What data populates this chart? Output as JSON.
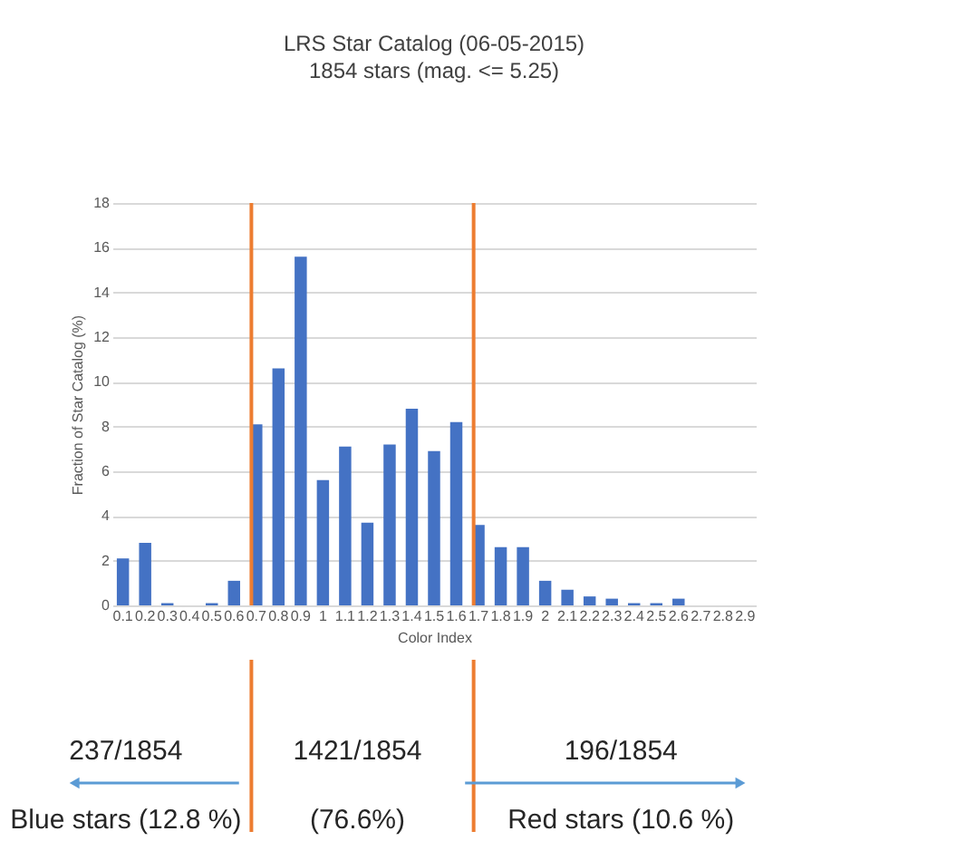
{
  "chart_data": {
    "type": "bar",
    "title": "LRS Star Catalog (06-05-2015)",
    "subtitle": "1854 stars (mag. <= 5.25)",
    "xlabel": "Color Index",
    "ylabel": "Fraction of Star Catalog (%)",
    "categories": [
      "0.1",
      "0.2",
      "0.3",
      "0.4",
      "0.5",
      "0.6",
      "0.7",
      "0.8",
      "0.9",
      "1",
      "1.1",
      "1.2",
      "1.3",
      "1.4",
      "1.5",
      "1.6",
      "1.7",
      "1.8",
      "1.9",
      "2",
      "2.1",
      "2.2",
      "2.3",
      "2.4",
      "2.5",
      "2.6",
      "2.7",
      "2.8",
      "2.9"
    ],
    "values": [
      2.1,
      2.8,
      0.1,
      0,
      0.1,
      1.1,
      8.1,
      10.6,
      15.6,
      5.6,
      7.1,
      3.7,
      7.2,
      8.8,
      6.9,
      8.2,
      3.6,
      2.6,
      2.6,
      1.1,
      0.7,
      0.4,
      0.3,
      0.1,
      0.1,
      0.3,
      0,
      0,
      0
    ],
    "color": "#4472c4",
    "ylim": [
      0,
      18
    ],
    "yticks": [
      0,
      2,
      4,
      6,
      8,
      10,
      12,
      14,
      16,
      18
    ],
    "grid": "y",
    "ref_lines": [
      {
        "axis": "x",
        "value": "0.7",
        "color": "#ed7d31"
      },
      {
        "axis": "x",
        "value": "1.7",
        "color": "#ed7d31"
      }
    ],
    "annotations": [
      "237/1854",
      "Blue stars (12.8 %)",
      "1421/1854",
      "(76.6%)",
      "196/1854",
      "Red stars (10.6 %)"
    ]
  }
}
